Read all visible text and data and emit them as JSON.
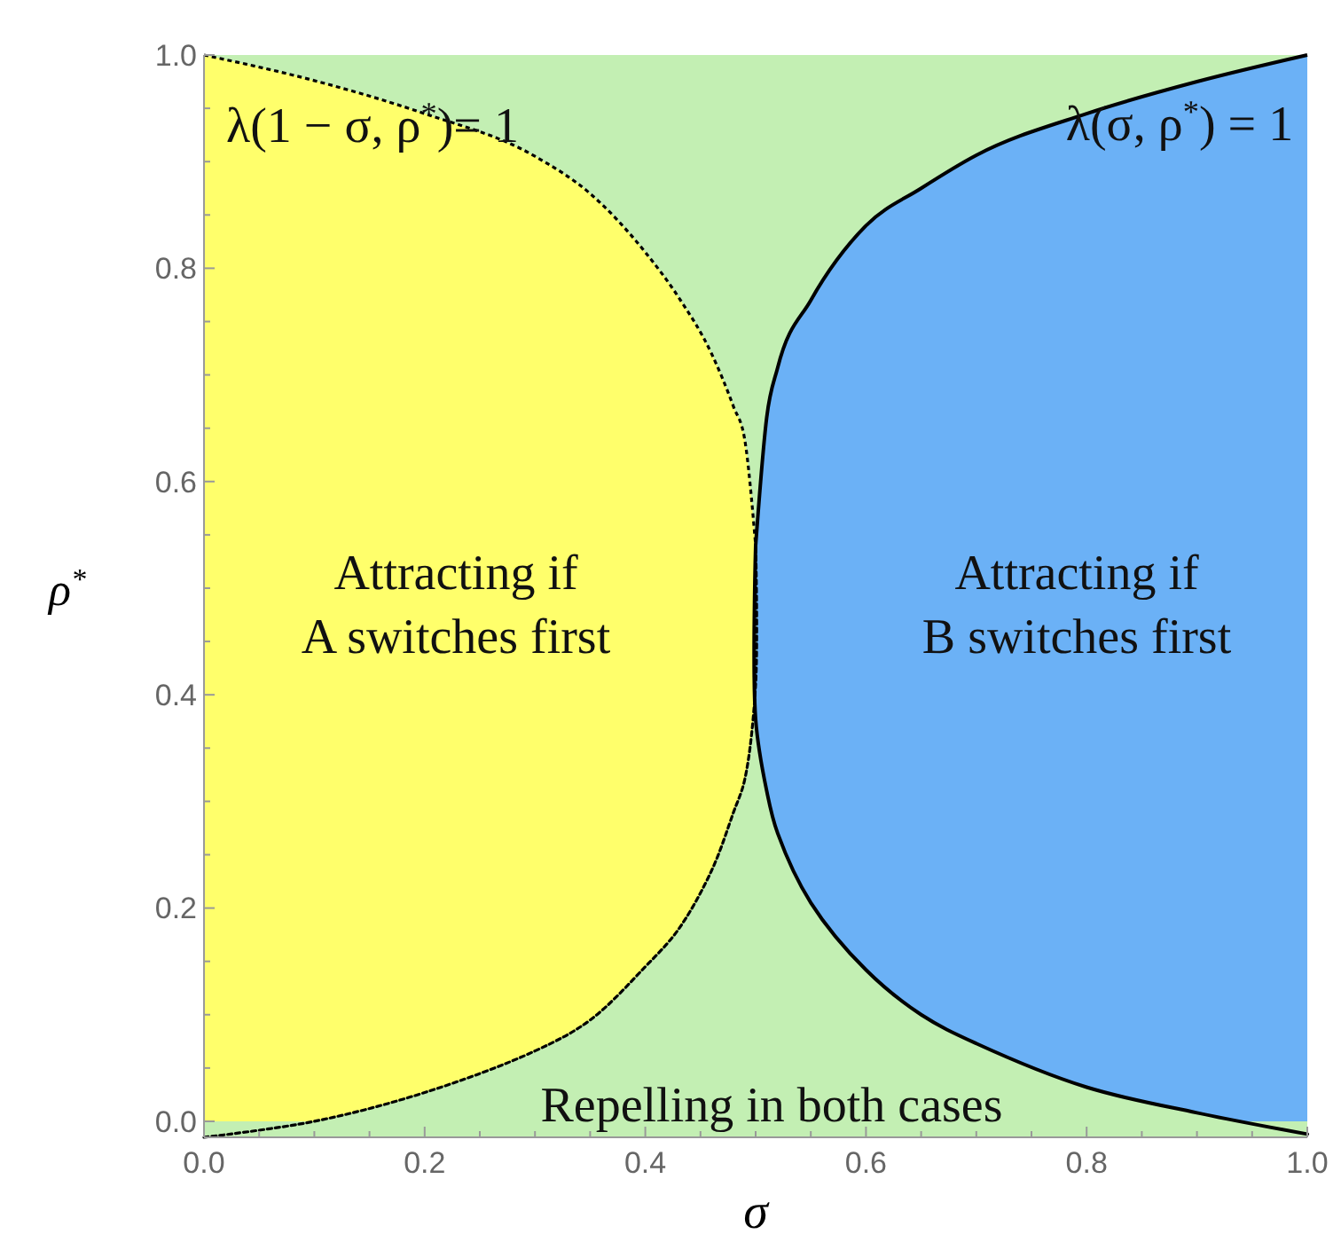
{
  "chart_data": {
    "type": "area",
    "xlabel": "σ",
    "ylabel": "ρ$^{*}$",
    "xlim": [
      0,
      1
    ],
    "ylim": [
      -0.015,
      1.0
    ],
    "xticks": [
      {
        "value": 0,
        "label": "0.0"
      },
      {
        "value": 0.05,
        "label": null
      },
      {
        "value": 0.1,
        "label": null
      },
      {
        "value": 0.15,
        "label": null
      },
      {
        "value": 0.2,
        "label": "0.2"
      },
      {
        "value": 0.25,
        "label": null
      },
      {
        "value": 0.3,
        "label": null
      },
      {
        "value": 0.35,
        "label": null
      },
      {
        "value": 0.4,
        "label": "0.4"
      },
      {
        "value": 0.45,
        "label": null
      },
      {
        "value": 0.5,
        "label": null
      },
      {
        "value": 0.55,
        "label": null
      },
      {
        "value": 0.6,
        "label": "0.6"
      },
      {
        "value": 0.65,
        "label": null
      },
      {
        "value": 0.7,
        "label": null
      },
      {
        "value": 0.75,
        "label": null
      },
      {
        "value": 0.8,
        "label": "0.8"
      },
      {
        "value": 0.85,
        "label": null
      },
      {
        "value": 0.9,
        "label": null
      },
      {
        "value": 0.95,
        "label": null
      },
      {
        "value": 1,
        "label": "1.0"
      }
    ],
    "yticks": [
      {
        "value": 0,
        "label": "0.0"
      },
      {
        "value": 0.05,
        "label": null
      },
      {
        "value": 0.1,
        "label": null
      },
      {
        "value": 0.15,
        "label": null
      },
      {
        "value": 0.2,
        "label": "0.2"
      },
      {
        "value": 0.25,
        "label": null
      },
      {
        "value": 0.3,
        "label": null
      },
      {
        "value": 0.35,
        "label": null
      },
      {
        "value": 0.4,
        "label": "0.4"
      },
      {
        "value": 0.45,
        "label": null
      },
      {
        "value": 0.5,
        "label": null
      },
      {
        "value": 0.55,
        "label": null
      },
      {
        "value": 0.6,
        "label": "0.6"
      },
      {
        "value": 0.65,
        "label": null
      },
      {
        "value": 0.7,
        "label": null
      },
      {
        "value": 0.75,
        "label": null
      },
      {
        "value": 0.8,
        "label": "0.8"
      },
      {
        "value": 0.85,
        "label": null
      },
      {
        "value": 0.9,
        "label": null
      },
      {
        "value": 0.95,
        "label": null
      },
      {
        "value": 1,
        "label": "1.0"
      }
    ],
    "bands": [
      {
        "axis": "y",
        "from": -0.015,
        "to": 1.0,
        "color": "#c3efb3"
      }
    ],
    "series": [
      {
        "color": "#ffff6b",
        "line_style": "dotted",
        "x": [
          0,
          0.1,
          0.2,
          0.3,
          0.35,
          0.4,
          0.43,
          0.46,
          0.48,
          0.49,
          0.5
        ],
        "values": [
          1.0,
          0.976,
          0.945,
          0.905,
          0.87,
          0.815,
          0.773,
          0.72,
          0.67,
          0.64,
          0.54
        ]
      },
      {
        "color": "#6bb1f6",
        "line_style": "solid",
        "x": [
          0.5,
          0.51,
          0.52,
          0.55,
          0.6,
          0.65,
          0.7,
          0.8,
          0.9,
          1.0
        ],
        "values": [
          0.54,
          0.66,
          0.707,
          0.77,
          0.84,
          0.875,
          0.906,
          0.945,
          0.975,
          1.0
        ]
      },
      {
        "type": "line",
        "color": "#000000",
        "line_style": "dotted",
        "x": [
          0,
          0.1,
          0.2,
          0.3,
          0.35,
          0.4,
          0.43,
          0.46,
          0.48,
          0.49,
          0.5,
          0.5
        ],
        "values": [
          -0.015,
          0.0,
          0.027,
          0.066,
          0.095,
          0.145,
          0.18,
          0.235,
          0.29,
          0.32,
          0.41,
          0.54
        ]
      },
      {
        "type": "line",
        "color": "#000000",
        "line_style": "solid",
        "x": [
          0.5,
          0.5,
          0.51,
          0.52,
          0.55,
          0.6,
          0.65,
          0.7,
          0.8,
          0.9,
          1.0
        ],
        "values": [
          0.54,
          0.377,
          0.31,
          0.27,
          0.205,
          0.142,
          0.1,
          0.073,
          0.032,
          0.008,
          -0.012
        ]
      }
    ],
    "annotations": [
      "λ(1 − σ, ρ$^{*}$)= 1",
      "λ(σ, ρ$^{*}$) = 1",
      "Attracting if\nA switches first",
      "Attracting if\nB switches first",
      "Repelling in both cases"
    ]
  }
}
